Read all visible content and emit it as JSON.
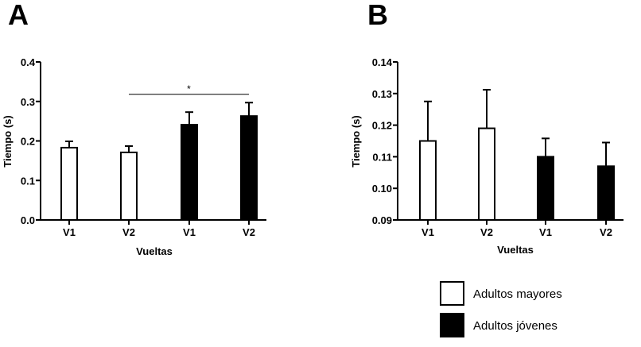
{
  "colors": {
    "group_older": "#ffffff",
    "group_young": "#000000",
    "stroke": "#000000"
  },
  "legend": {
    "placement": "bottom-right",
    "items": [
      {
        "label": "Adultos mayores",
        "color": "#ffffff"
      },
      {
        "label": "Adultos jóvenes",
        "color": "#000000"
      }
    ]
  },
  "chart_data": [
    {
      "panel": "A",
      "type": "bar",
      "xlabel": "Vueltas",
      "ylabel": "Tiempo (s)",
      "ylim": [
        0,
        0.4
      ],
      "yticks": [
        "0.0",
        "0.1",
        "0.2",
        "0.3",
        "0.4"
      ],
      "categories": [
        "V1",
        "V2",
        "V1",
        "V2"
      ],
      "values": [
        0.183,
        0.171,
        0.241,
        0.263
      ],
      "errors": [
        0.016,
        0.016,
        0.032,
        0.034
      ],
      "groups": [
        "Adultos mayores",
        "Adultos mayores",
        "Adultos jóvenes",
        "Adultos jóvenes"
      ],
      "significance": [
        {
          "from": 1,
          "to": 3,
          "label": "*",
          "y": 0.32
        }
      ],
      "grid": false
    },
    {
      "panel": "B",
      "type": "bar",
      "xlabel": "Vueltas",
      "ylabel": "Tiempo (s)",
      "ylim": [
        0.09,
        0.14
      ],
      "yticks": [
        "0.09",
        "0.10",
        "0.11",
        "0.12",
        "0.13",
        "0.14"
      ],
      "categories": [
        "V1",
        "V2",
        "V1",
        "V2"
      ],
      "values": [
        0.115,
        0.119,
        0.11,
        0.107
      ],
      "errors": [
        0.0125,
        0.0122,
        0.0058,
        0.0075
      ],
      "groups": [
        "Adultos mayores",
        "Adultos mayores",
        "Adultos jóvenes",
        "Adultos jóvenes"
      ],
      "significance": [],
      "grid": false
    }
  ]
}
